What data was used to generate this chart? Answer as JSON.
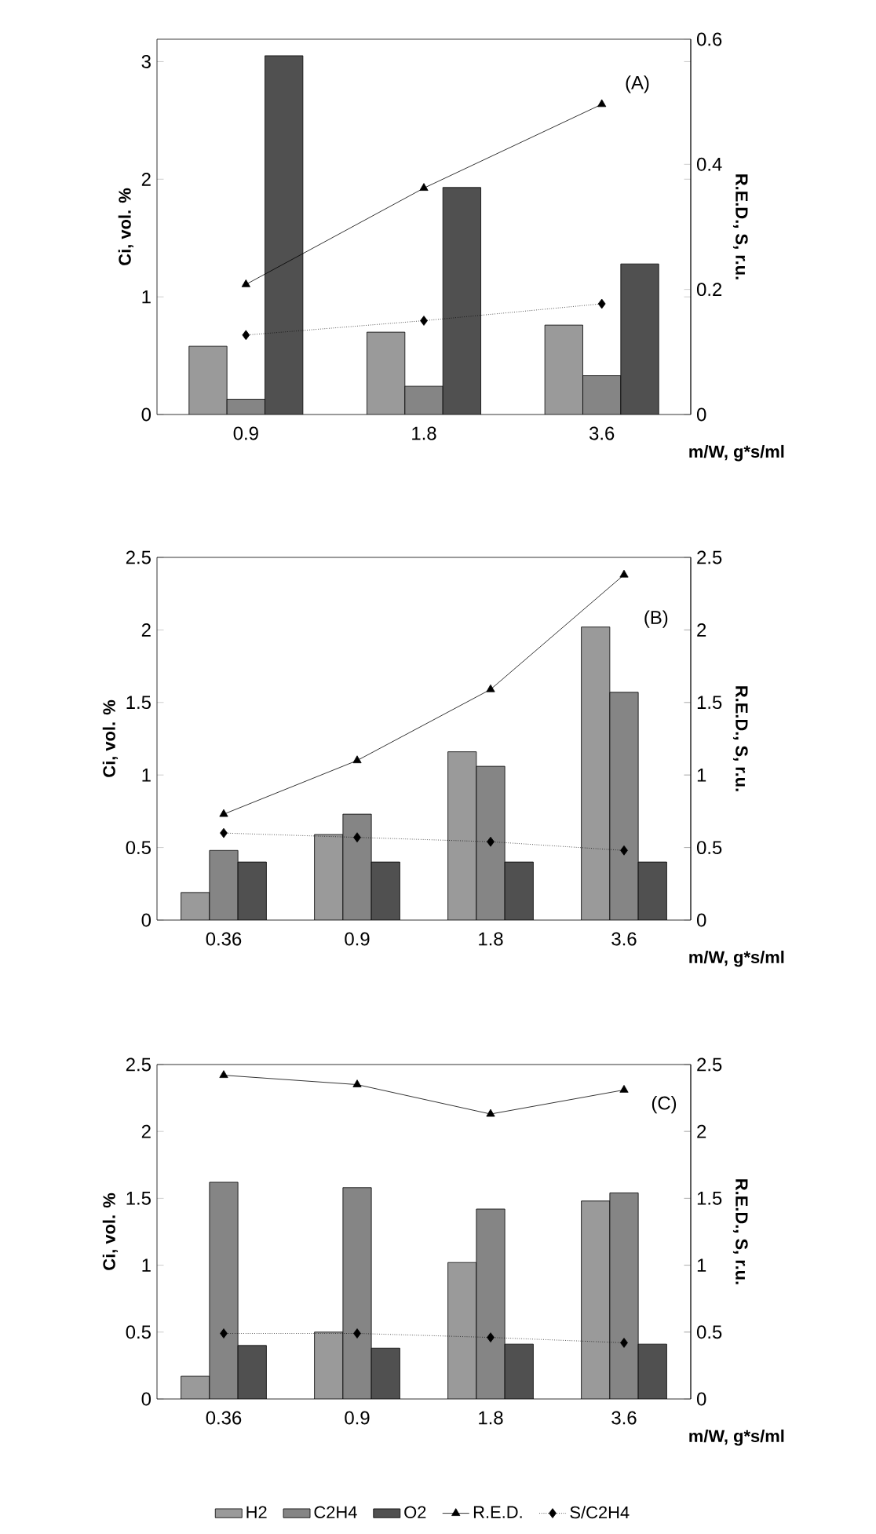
{
  "chart_data": [
    {
      "type": "bar",
      "categories": [
        "0.9",
        "1.8",
        "3.6"
      ],
      "xlabel": "m/W, g*s/ml",
      "ylabel": "Ci, vol. %",
      "y2label": "R.E.D., S, r.u.",
      "ylim": [
        0,
        3.19
      ],
      "yticks": [
        0,
        1,
        2,
        3
      ],
      "y2lim": [
        0,
        0.6
      ],
      "y2ticks": [
        0,
        0.2,
        0.4,
        0.6
      ],
      "annotations": [
        "(A)"
      ],
      "legend": false,
      "series": [
        {
          "type": "bar",
          "color": "#9a9a9a",
          "values": [
            0.58,
            0.7,
            0.76
          ]
        },
        {
          "type": "bar",
          "color": "#858585",
          "values": [
            0.13,
            0.24,
            0.33
          ]
        },
        {
          "type": "bar",
          "color": "#505050",
          "values": [
            3.05,
            1.93,
            1.28
          ]
        },
        {
          "type": "line",
          "axis": "y2",
          "color": "#000000",
          "marker": "triangle",
          "line_style": "solid",
          "values": [
            0.208,
            0.362,
            0.496
          ]
        },
        {
          "type": "line",
          "axis": "y2",
          "color": "#000000",
          "marker": "diamond",
          "line_style": "dotted",
          "values": [
            0.127,
            0.15,
            0.177
          ]
        }
      ]
    },
    {
      "type": "bar",
      "categories": [
        "0.36",
        "0.9",
        "1.8",
        "3.6"
      ],
      "xlabel": "m/W, g*s/ml",
      "ylabel": "Ci, vol. %",
      "y2label": "R.E.D., S, r.u.",
      "ylim": [
        0,
        2.5
      ],
      "yticks": [
        0,
        0.5,
        1,
        1.5,
        2,
        2.5
      ],
      "y2lim": [
        0,
        2.5
      ],
      "y2ticks": [
        0,
        0.5,
        1,
        1.5,
        2,
        2.5
      ],
      "annotations": [
        "(B)"
      ],
      "legend": false,
      "series": [
        {
          "type": "bar",
          "color": "#9a9a9a",
          "values": [
            0.19,
            0.59,
            1.16,
            2.02
          ]
        },
        {
          "type": "bar",
          "color": "#858585",
          "values": [
            0.48,
            0.73,
            1.06,
            1.57
          ]
        },
        {
          "type": "bar",
          "color": "#505050",
          "values": [
            0.4,
            0.4,
            0.4,
            0.4
          ]
        },
        {
          "type": "line",
          "axis": "y2",
          "color": "#000000",
          "marker": "triangle",
          "line_style": "solid",
          "values": [
            0.73,
            1.1,
            1.59,
            2.38
          ]
        },
        {
          "type": "line",
          "axis": "y2",
          "color": "#000000",
          "marker": "diamond",
          "line_style": "dotted",
          "values": [
            0.6,
            0.57,
            0.54,
            0.48
          ]
        }
      ]
    },
    {
      "type": "bar",
      "categories": [
        "0.36",
        "0.9",
        "1.8",
        "3.6"
      ],
      "xlabel": "m/W, g*s/ml",
      "ylabel": "Ci, vol. %",
      "y2label": "R.E.D., S, r.u.",
      "ylim": [
        0,
        2.5
      ],
      "yticks": [
        0,
        0.5,
        1,
        1.5,
        2,
        2.5
      ],
      "y2lim": [
        0,
        2.5
      ],
      "y2ticks": [
        0,
        0.5,
        1,
        1.5,
        2,
        2.5
      ],
      "annotations": [
        "(C)"
      ],
      "legend": "bottom",
      "series": [
        {
          "type": "bar",
          "name": "H2",
          "color": "#9a9a9a",
          "values": [
            0.17,
            0.5,
            1.02,
            1.48
          ]
        },
        {
          "type": "bar",
          "name": "C2H4",
          "color": "#858585",
          "values": [
            1.62,
            1.58,
            1.42,
            1.54
          ]
        },
        {
          "type": "bar",
          "name": "O2",
          "color": "#505050",
          "values": [
            0.4,
            0.38,
            0.41,
            0.41
          ]
        },
        {
          "type": "line",
          "name": "R.E.D.",
          "axis": "y2",
          "color": "#000000",
          "marker": "triangle",
          "line_style": "solid",
          "values": [
            2.42,
            2.35,
            2.13,
            2.31
          ]
        },
        {
          "type": "line",
          "name": "S/C2H4",
          "axis": "y2",
          "color": "#000000",
          "marker": "diamond",
          "line_style": "dotted",
          "values": [
            0.49,
            0.49,
            0.46,
            0.42
          ]
        }
      ]
    }
  ]
}
